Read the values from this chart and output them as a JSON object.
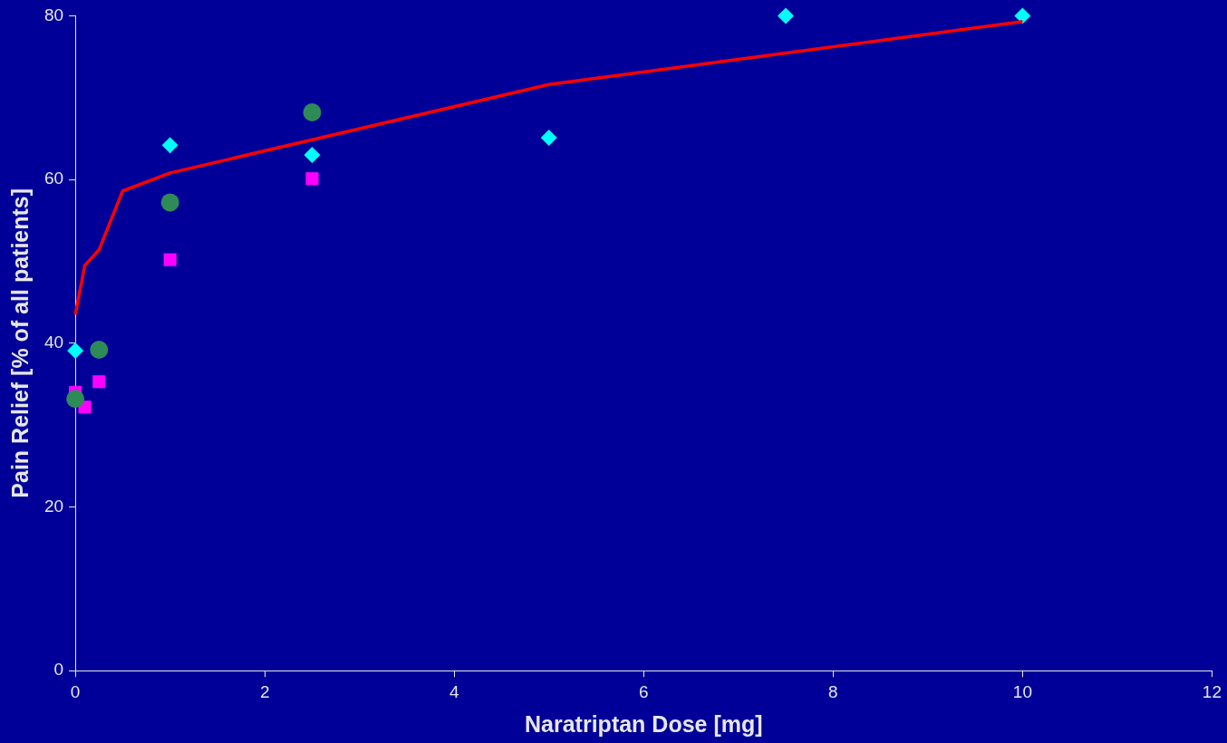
{
  "chart_data": {
    "type": "scatter",
    "xlabel": "Naratriptan Dose [mg]",
    "ylabel": "Pain Relief [% of all patients]",
    "xlim": [
      0,
      12
    ],
    "xticks": [
      0,
      2,
      4,
      6,
      8,
      10,
      12
    ],
    "ylim": [
      0,
      80
    ],
    "yticks": [
      0,
      20,
      40,
      60,
      80
    ],
    "grid": false,
    "legend": false,
    "series": [
      {
        "type": "line",
        "color": "#ff0000",
        "marker": "none",
        "line_style": "solid",
        "x": [
          0,
          0.1,
          0.25,
          0.5,
          1,
          5,
          10
        ],
        "values": [
          43.5,
          49.5,
          51.4,
          58.6,
          60.8,
          71.6,
          79.3
        ]
      },
      {
        "color": "#2e8b57",
        "marker": "circle",
        "x": [
          0,
          0.25,
          1,
          2.5
        ],
        "values": [
          33.2,
          39.2,
          57.2,
          68.2
        ]
      },
      {
        "color": "#ff00ff",
        "marker": "square",
        "x": [
          0,
          0.1,
          0.25,
          1,
          2.5
        ],
        "values": [
          34,
          32.2,
          35.3,
          50.2,
          60.1
        ]
      },
      {
        "color": "#00ffff",
        "marker": "diamond",
        "x": [
          0,
          1,
          2.5,
          5,
          7.5,
          10
        ],
        "values": [
          39.1,
          64.2,
          63,
          65.1,
          80,
          80
        ]
      }
    ]
  }
}
